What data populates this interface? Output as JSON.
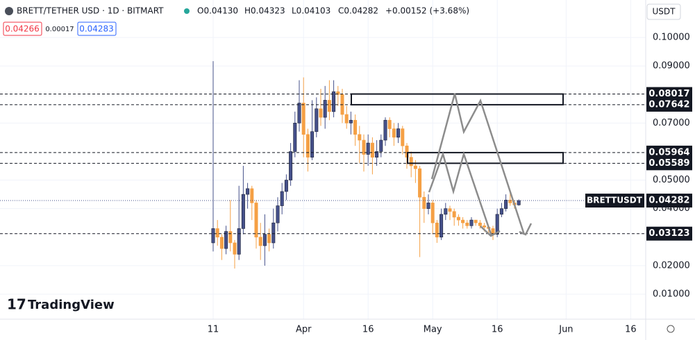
{
  "header": {
    "symbol": "BRETT/TETHER USD · 1D · BITMART",
    "ohlc": [
      "O0.04130",
      "H0.04323",
      "L0.04103",
      "C0.04282",
      "+0.00152 (+3.68%)"
    ],
    "quote": [
      "0.04266",
      "0.00017",
      "0.04283"
    ],
    "currency": "USDT",
    "brand": "TradingView",
    "symbol_tag": "BRETTUSDT"
  },
  "chart_data": {
    "type": "candlestick",
    "up_color": "#45508a",
    "down_color": "#f5a045",
    "x": [
      "03-11",
      "03-12",
      "03-13",
      "03-14",
      "03-15",
      "03-16",
      "03-17",
      "03-18",
      "03-19",
      "03-20",
      "03-21",
      "03-22",
      "03-23",
      "03-24",
      "03-25",
      "03-26",
      "03-27",
      "03-28",
      "03-29",
      "03-30",
      "03-31",
      "04-01",
      "04-02",
      "04-03",
      "04-04",
      "04-05",
      "04-06",
      "04-07",
      "04-08",
      "04-09",
      "04-10",
      "04-11",
      "04-12",
      "04-13",
      "04-14",
      "04-15",
      "04-16",
      "04-17",
      "04-18",
      "04-19",
      "04-20",
      "04-21",
      "04-22",
      "04-23",
      "04-24",
      "04-25",
      "04-26",
      "04-27",
      "04-28",
      "04-29",
      "04-30",
      "05-01",
      "05-02",
      "05-03",
      "05-04",
      "05-05",
      "05-06",
      "05-07",
      "05-08",
      "05-09",
      "05-10",
      "05-11",
      "05-12",
      "05-13",
      "05-14",
      "05-15",
      "05-16",
      "05-17",
      "05-18",
      "05-19",
      "05-20",
      "05-21"
    ],
    "open": [
      0.028,
      0.033,
      0.03,
      0.026,
      0.032,
      0.028,
      0.024,
      0.033,
      0.045,
      0.047,
      0.042,
      0.03,
      0.027,
      0.031,
      0.028,
      0.035,
      0.041,
      0.046,
      0.05,
      0.06,
      0.07,
      0.077,
      0.066,
      0.058,
      0.067,
      0.075,
      0.072,
      0.078,
      0.074,
      0.081,
      0.08,
      0.073,
      0.07,
      0.071,
      0.066,
      0.064,
      0.059,
      0.063,
      0.058,
      0.06,
      0.064,
      0.071,
      0.068,
      0.065,
      0.068,
      0.062,
      0.058,
      0.055,
      0.054,
      0.044,
      0.04,
      0.042,
      0.035,
      0.03,
      0.038,
      0.04,
      0.039,
      0.037,
      0.036,
      0.035,
      0.034,
      0.036,
      0.035,
      0.034,
      0.0335,
      0.033,
      0.031,
      0.038,
      0.04,
      0.043,
      0.042,
      0.0413
    ],
    "high": [
      0.0917,
      0.036,
      0.031,
      0.034,
      0.043,
      0.029,
      0.048,
      0.055,
      0.049,
      0.048,
      0.043,
      0.035,
      0.038,
      0.033,
      0.04,
      0.044,
      0.049,
      0.052,
      0.063,
      0.074,
      0.085,
      0.086,
      0.068,
      0.078,
      0.079,
      0.082,
      0.083,
      0.085,
      0.085,
      0.083,
      0.082,
      0.076,
      0.074,
      0.073,
      0.069,
      0.066,
      0.066,
      0.065,
      0.064,
      0.066,
      0.072,
      0.072,
      0.07,
      0.07,
      0.069,
      0.063,
      0.06,
      0.057,
      0.055,
      0.046,
      0.045,
      0.043,
      0.036,
      0.04,
      0.042,
      0.041,
      0.04,
      0.038,
      0.037,
      0.036,
      0.037,
      0.036,
      0.036,
      0.035,
      0.034,
      0.034,
      0.04,
      0.042,
      0.045,
      0.046,
      0.043,
      0.04323
    ],
    "low": [
      0.025,
      0.027,
      0.022,
      0.024,
      0.025,
      0.019,
      0.022,
      0.031,
      0.04,
      0.036,
      0.026,
      0.022,
      0.02,
      0.025,
      0.026,
      0.032,
      0.038,
      0.043,
      0.048,
      0.058,
      0.067,
      0.058,
      0.053,
      0.057,
      0.065,
      0.069,
      0.068,
      0.071,
      0.072,
      0.076,
      0.07,
      0.068,
      0.066,
      0.062,
      0.056,
      0.053,
      0.055,
      0.052,
      0.055,
      0.058,
      0.062,
      0.065,
      0.062,
      0.063,
      0.059,
      0.054,
      0.051,
      0.049,
      0.023,
      0.035,
      0.038,
      0.031,
      0.028,
      0.029,
      0.036,
      0.036,
      0.034,
      0.034,
      0.033,
      0.033,
      0.033,
      0.034,
      0.033,
      0.032,
      0.031,
      0.029,
      0.03,
      0.037,
      0.039,
      0.041,
      0.04,
      0.04103
    ],
    "close": [
      0.033,
      0.03,
      0.026,
      0.032,
      0.028,
      0.024,
      0.033,
      0.045,
      0.047,
      0.042,
      0.03,
      0.027,
      0.031,
      0.028,
      0.035,
      0.041,
      0.046,
      0.05,
      0.06,
      0.07,
      0.077,
      0.066,
      0.058,
      0.067,
      0.075,
      0.072,
      0.078,
      0.074,
      0.081,
      0.08,
      0.073,
      0.07,
      0.071,
      0.066,
      0.064,
      0.059,
      0.063,
      0.058,
      0.06,
      0.064,
      0.071,
      0.068,
      0.065,
      0.068,
      0.062,
      0.058,
      0.055,
      0.054,
      0.044,
      0.04,
      0.042,
      0.035,
      0.03,
      0.038,
      0.04,
      0.039,
      0.037,
      0.036,
      0.035,
      0.034,
      0.036,
      0.035,
      0.034,
      0.0335,
      0.033,
      0.031,
      0.038,
      0.04,
      0.043,
      0.042,
      0.0413,
      0.04282
    ],
    "ylim": [
      0.00124,
      0.11313
    ],
    "yticks": [
      {
        "value": 0.1,
        "label": "0.10000"
      },
      {
        "value": 0.09,
        "label": "0.09000"
      },
      {
        "value": 0.07,
        "label": "0.07000"
      },
      {
        "value": 0.05,
        "label": "0.05000"
      },
      {
        "value": 0.04,
        "label": "0.04000"
      },
      {
        "value": 0.02,
        "label": "0.02000"
      },
      {
        "value": 0.01,
        "label": "0.01000"
      }
    ],
    "xticks": [
      {
        "value": "03-11",
        "label": "11"
      },
      {
        "value": "04-01",
        "label": "Apr"
      },
      {
        "value": "04-16",
        "label": "16"
      },
      {
        "value": "05-01",
        "label": "May"
      },
      {
        "value": "05-16",
        "label": "16"
      },
      {
        "value": "06-01",
        "label": "Jun"
      },
      {
        "value": "06-16",
        "label": "16"
      }
    ],
    "levels": [
      0.08017,
      0.07642,
      0.05964,
      0.05589,
      0.03123
    ],
    "last_price": 0.04282
  }
}
